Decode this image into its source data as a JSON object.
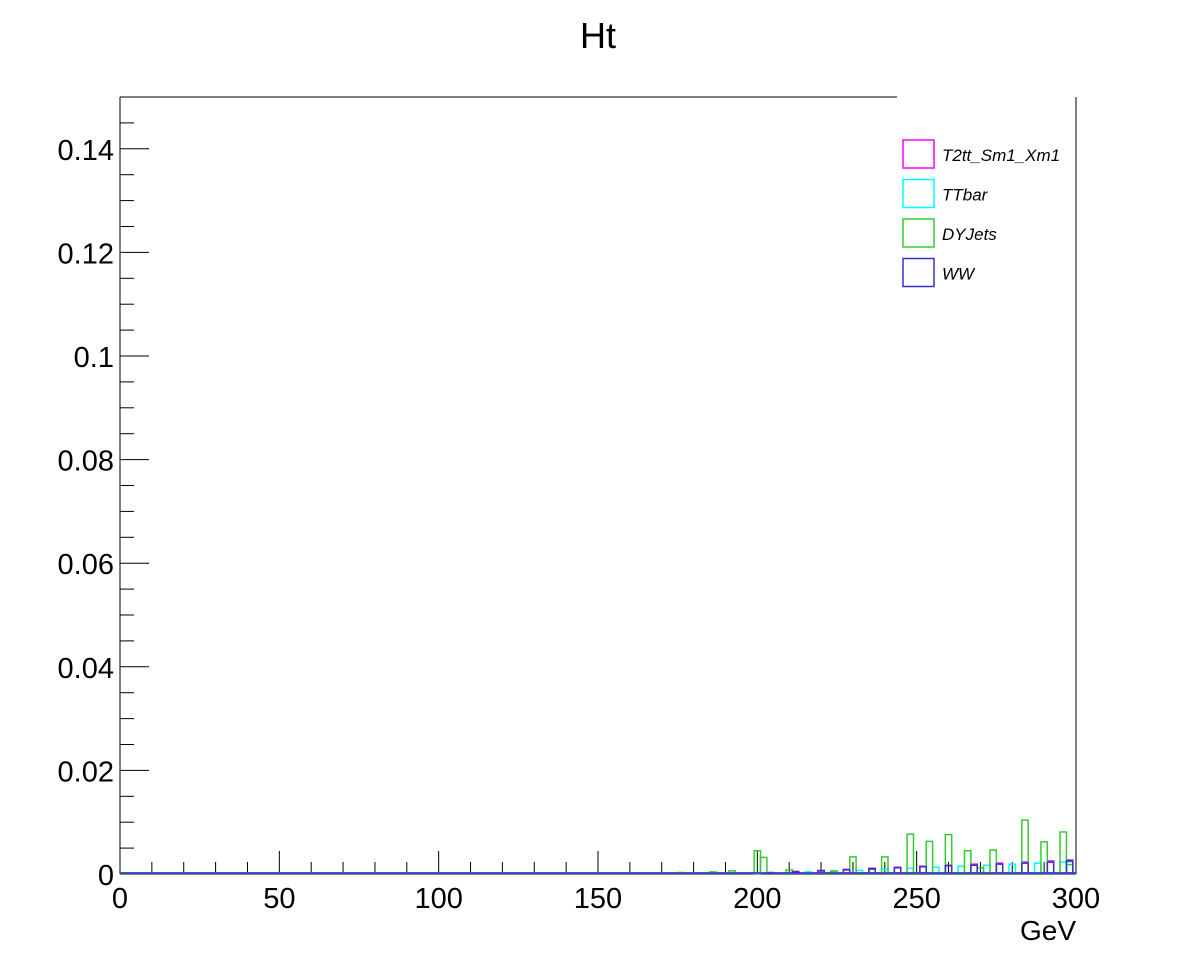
{
  "chart_data": {
    "type": "line",
    "style": "step-histogram",
    "title": "Ht",
    "xlabel": "GeV",
    "ylabel": "",
    "xlim": [
      0,
      300
    ],
    "ylim": [
      0,
      0.15
    ],
    "x_ticks": [
      0,
      50,
      100,
      150,
      200,
      250,
      300
    ],
    "x_tick_labels": [
      "0",
      "50",
      "100",
      "150",
      "200",
      "250",
      "300"
    ],
    "y_ticks": [
      0,
      0.02,
      0.04,
      0.06,
      0.08,
      0.1,
      0.12,
      0.14
    ],
    "y_tick_labels": [
      "0",
      "0.02",
      "0.04",
      "0.06",
      "0.08",
      "0.1",
      "0.12",
      "0.14"
    ],
    "grid": false,
    "legend_position": "top-right",
    "bin_width": 2,
    "series": [
      {
        "name": "T2tt_Sm1_Xm1",
        "color": "#ff00ff",
        "points": [
          [
            196,
            0.0002
          ],
          [
            204,
            0.0003
          ],
          [
            212,
            0.0005
          ],
          [
            220,
            0.0007
          ],
          [
            228,
            0.0009
          ],
          [
            236,
            0.0011
          ],
          [
            244,
            0.0013
          ],
          [
            252,
            0.0015
          ],
          [
            260,
            0.0017
          ],
          [
            268,
            0.0019
          ],
          [
            276,
            0.0021
          ],
          [
            284,
            0.0023
          ],
          [
            292,
            0.0025
          ],
          [
            298,
            0.0027
          ]
        ]
      },
      {
        "name": "TTbar",
        "color": "#00ffff",
        "points": [
          [
            200,
            0.0001
          ],
          [
            208,
            0.0002
          ],
          [
            216,
            0.0004
          ],
          [
            224,
            0.0005
          ],
          [
            232,
            0.0007
          ],
          [
            240,
            0.0009
          ],
          [
            248,
            0.0011
          ],
          [
            256,
            0.0013
          ],
          [
            264,
            0.0015
          ],
          [
            272,
            0.0017
          ],
          [
            280,
            0.0019
          ],
          [
            288,
            0.0021
          ],
          [
            296,
            0.0023
          ],
          [
            298,
            0.0024
          ]
        ]
      },
      {
        "name": "DYJets",
        "color": "#33cc33",
        "points": [
          [
            176,
            0.0003
          ],
          [
            186,
            0.0004
          ],
          [
            192,
            0.0006
          ],
          [
            200,
            0.0045
          ],
          [
            202,
            0.0032
          ],
          [
            210,
            0.0008
          ],
          [
            224,
            0.0006
          ],
          [
            230,
            0.0033
          ],
          [
            236,
            0.0009
          ],
          [
            240,
            0.0033
          ],
          [
            248,
            0.0077
          ],
          [
            254,
            0.0063
          ],
          [
            260,
            0.0076
          ],
          [
            266,
            0.0045
          ],
          [
            270,
            0.0012
          ],
          [
            274,
            0.0046
          ],
          [
            284,
            0.0104
          ],
          [
            290,
            0.0062
          ],
          [
            296,
            0.0081
          ],
          [
            298,
            0.0018
          ]
        ]
      },
      {
        "name": "WW",
        "color": "#3333cc",
        "points": [
          [
            204,
            0.0002
          ],
          [
            212,
            0.0004
          ],
          [
            220,
            0.0006
          ],
          [
            228,
            0.0008
          ],
          [
            236,
            0.001
          ],
          [
            244,
            0.0012
          ],
          [
            252,
            0.0014
          ],
          [
            260,
            0.0016
          ],
          [
            268,
            0.0017
          ],
          [
            276,
            0.0019
          ],
          [
            284,
            0.0021
          ],
          [
            292,
            0.0023
          ],
          [
            298,
            0.0025
          ]
        ]
      }
    ]
  }
}
